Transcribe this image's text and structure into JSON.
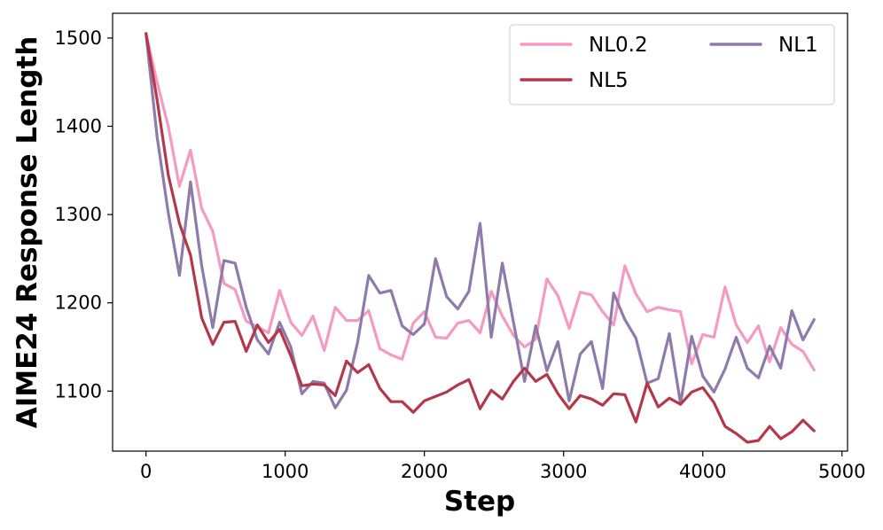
{
  "chart_data": {
    "type": "line",
    "title": "",
    "xlabel": "Step",
    "ylabel": "AIME24 Response Length",
    "xlim": [
      -240,
      5040
    ],
    "ylim": [
      1032,
      1528
    ],
    "xticks": [
      0,
      1000,
      2000,
      3000,
      4000,
      5000
    ],
    "yticks": [
      1100,
      1200,
      1300,
      1400,
      1500
    ],
    "grid": false,
    "legend": {
      "placement": "top-right",
      "columns": 2
    },
    "x": [
      0,
      80,
      160,
      240,
      320,
      400,
      480,
      560,
      640,
      720,
      800,
      880,
      960,
      1040,
      1120,
      1200,
      1280,
      1360,
      1440,
      1520,
      1600,
      1680,
      1760,
      1840,
      1920,
      2000,
      2080,
      2160,
      2240,
      2320,
      2400,
      2480,
      2560,
      2640,
      2720,
      2800,
      2880,
      2960,
      3040,
      3120,
      3200,
      3280,
      3360,
      3440,
      3520,
      3600,
      3680,
      3760,
      3840,
      3920,
      4000,
      4080,
      4160,
      4240,
      4320,
      4400,
      4480,
      4560,
      4640,
      4720,
      4800
    ],
    "series": [
      {
        "name": "NL0.2",
        "color": "#f59ac0",
        "values": [
          1505,
          1450,
          1400,
          1332,
          1373,
          1307,
          1281,
          1222,
          1215,
          1179,
          1173,
          1166,
          1214,
          1178,
          1163,
          1185,
          1146,
          1195,
          1180,
          1180,
          1191,
          1148,
          1141,
          1136,
          1177,
          1190,
          1161,
          1160,
          1177,
          1180,
          1166,
          1213,
          1185,
          1163,
          1150,
          1159,
          1227,
          1208,
          1171,
          1212,
          1209,
          1190,
          1175,
          1242,
          1210,
          1190,
          1195,
          1192,
          1190,
          1131,
          1164,
          1161,
          1218,
          1175,
          1155,
          1174,
          1133,
          1172,
          1153,
          1145,
          1124
        ]
      },
      {
        "name": "NL1",
        "color": "#8e7bab",
        "values": [
          1505,
          1388,
          1302,
          1231,
          1337,
          1242,
          1172,
          1248,
          1245,
          1195,
          1158,
          1142,
          1178,
          1150,
          1097,
          1111,
          1109,
          1081,
          1101,
          1155,
          1231,
          1211,
          1214,
          1174,
          1164,
          1176,
          1250,
          1207,
          1193,
          1213,
          1290,
          1161,
          1245,
          1178,
          1111,
          1174,
          1123,
          1156,
          1089,
          1142,
          1156,
          1103,
          1211,
          1181,
          1160,
          1109,
          1114,
          1165,
          1086,
          1162,
          1117,
          1099,
          1125,
          1161,
          1126,
          1115,
          1151,
          1126,
          1191,
          1158,
          1181
        ]
      },
      {
        "name": "NL5",
        "color": "#b5384a",
        "values": [
          1505,
          1430,
          1345,
          1290,
          1254,
          1183,
          1153,
          1178,
          1179,
          1145,
          1175,
          1155,
          1170,
          1140,
          1106,
          1108,
          1107,
          1095,
          1134,
          1121,
          1130,
          1103,
          1088,
          1088,
          1076,
          1089,
          1094,
          1099,
          1107,
          1113,
          1080,
          1101,
          1091,
          1111,
          1126,
          1111,
          1119,
          1097,
          1080,
          1095,
          1091,
          1084,
          1097,
          1096,
          1065,
          1109,
          1082,
          1092,
          1085,
          1099,
          1104,
          1087,
          1060,
          1052,
          1042,
          1044,
          1060,
          1046,
          1054,
          1067,
          1055
        ]
      }
    ]
  }
}
